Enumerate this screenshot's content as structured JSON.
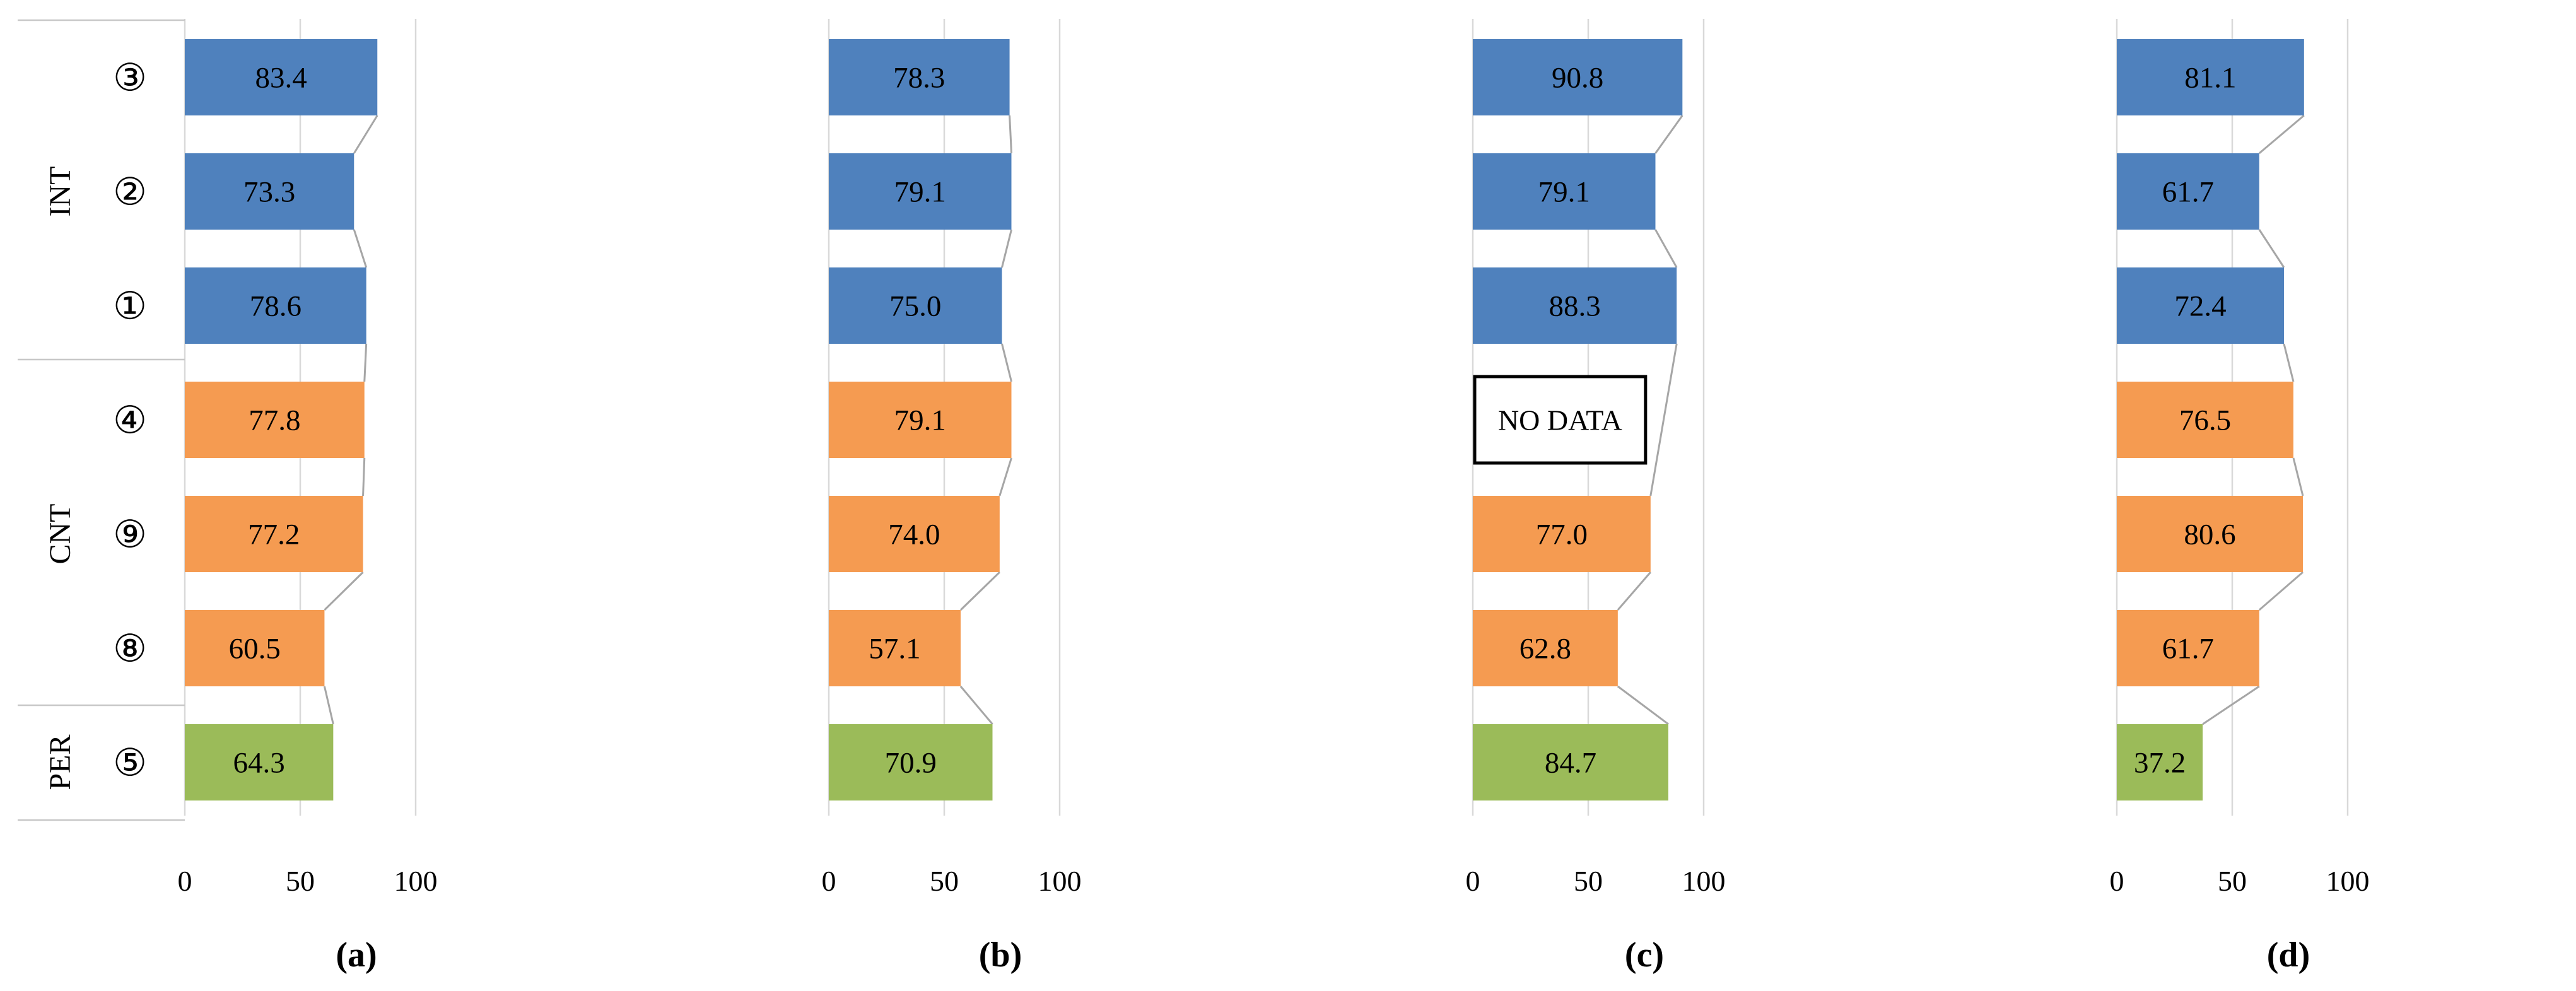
{
  "figure": {
    "colors": {
      "int_bar_blue": "#4F81BD",
      "cnt_bar_orange": "#F59B51",
      "per_bar_green": "#9BBB59",
      "gridline_gray": "#D9D9D9",
      "connector_gray": "#A6A6A6",
      "label_box_border_gray": "#C8C8C8",
      "no_data_border_black": "#000000",
      "text_black": "#000000"
    },
    "rows": [
      {
        "label": "③",
        "group": "INT"
      },
      {
        "label": "②",
        "group": "INT"
      },
      {
        "label": "①",
        "group": "INT"
      },
      {
        "label": "④",
        "group": "CNT"
      },
      {
        "label": "⑨",
        "group": "CNT"
      },
      {
        "label": "⑧",
        "group": "CNT"
      },
      {
        "label": "⑤",
        "group": "PER"
      }
    ],
    "group_labels": [
      "INT",
      "CNT",
      "PER"
    ]
  },
  "chart_data": [
    {
      "type": "bar",
      "orientation": "horizontal",
      "panel_label": "a",
      "categories": [
        "③",
        "②",
        "①",
        "④",
        "⑨",
        "⑧",
        "⑤"
      ],
      "groups": [
        "INT",
        "INT",
        "INT",
        "CNT",
        "CNT",
        "CNT",
        "PER"
      ],
      "values": [
        83.4,
        73.3,
        78.6,
        77.8,
        77.2,
        60.5,
        64.3
      ],
      "xticks": [
        0,
        50,
        100
      ],
      "xlim": [
        0,
        100
      ]
    },
    {
      "type": "bar",
      "orientation": "horizontal",
      "panel_label": "b",
      "categories": [
        "③",
        "②",
        "①",
        "④",
        "⑨",
        "⑧",
        "⑤"
      ],
      "groups": [
        "INT",
        "INT",
        "INT",
        "CNT",
        "CNT",
        "CNT",
        "PER"
      ],
      "values": [
        78.3,
        79.1,
        75.0,
        79.1,
        74.0,
        57.1,
        70.9
      ],
      "xticks": [
        0,
        50,
        100
      ],
      "xlim": [
        0,
        100
      ]
    },
    {
      "type": "bar",
      "orientation": "horizontal",
      "panel_label": "c",
      "categories": [
        "③",
        "②",
        "①",
        "④",
        "⑨",
        "⑧",
        "⑤"
      ],
      "groups": [
        "INT",
        "INT",
        "INT",
        "CNT",
        "CNT",
        "CNT",
        "PER"
      ],
      "values": [
        90.8,
        79.1,
        88.3,
        null,
        77.0,
        62.8,
        84.7
      ],
      "no_data_text": "NO DATA",
      "no_data_index": 3,
      "xticks": [
        0,
        50,
        100
      ],
      "xlim": [
        0,
        100
      ]
    },
    {
      "type": "bar",
      "orientation": "horizontal",
      "panel_label": "d",
      "categories": [
        "③",
        "②",
        "①",
        "④",
        "⑨",
        "⑧",
        "⑤"
      ],
      "groups": [
        "INT",
        "INT",
        "INT",
        "CNT",
        "CNT",
        "CNT",
        "PER"
      ],
      "values": [
        81.1,
        61.7,
        72.4,
        76.5,
        80.6,
        61.7,
        37.2
      ],
      "xticks": [
        0,
        50,
        100
      ],
      "xlim": [
        0,
        100
      ]
    }
  ]
}
